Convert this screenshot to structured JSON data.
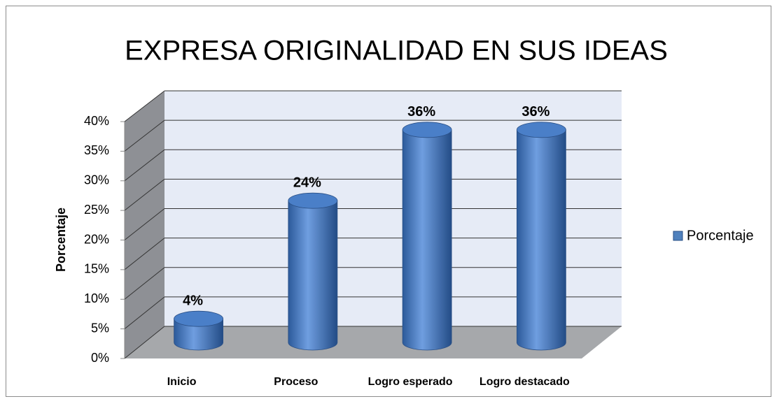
{
  "chart_data": {
    "type": "bar3d",
    "title": "EXPRESA ORIGINALIDAD EN SUS IDEAS",
    "y_label": "Porcentaje",
    "categories": [
      "Inicio",
      "Proceso",
      "Logro esperado",
      "Logro destacado"
    ],
    "series": [
      {
        "name": "Porcentaje",
        "color": "#4f81bd",
        "values": [
          4,
          24,
          36,
          36
        ],
        "value_labels": [
          "4%",
          "24%",
          "36%",
          "36%"
        ]
      }
    ],
    "ylim": [
      0,
      40
    ],
    "yticks": [
      {
        "value": 0,
        "label": "0%"
      },
      {
        "value": 5,
        "label": "5%"
      },
      {
        "value": 10,
        "label": "10%"
      },
      {
        "value": 15,
        "label": "15%"
      },
      {
        "value": 20,
        "label": "20%"
      },
      {
        "value": 25,
        "label": "25%"
      },
      {
        "value": 30,
        "label": "30%"
      },
      {
        "value": 35,
        "label": "35%"
      },
      {
        "value": 40,
        "label": "40%"
      }
    ],
    "grid": true,
    "legend": "right"
  }
}
